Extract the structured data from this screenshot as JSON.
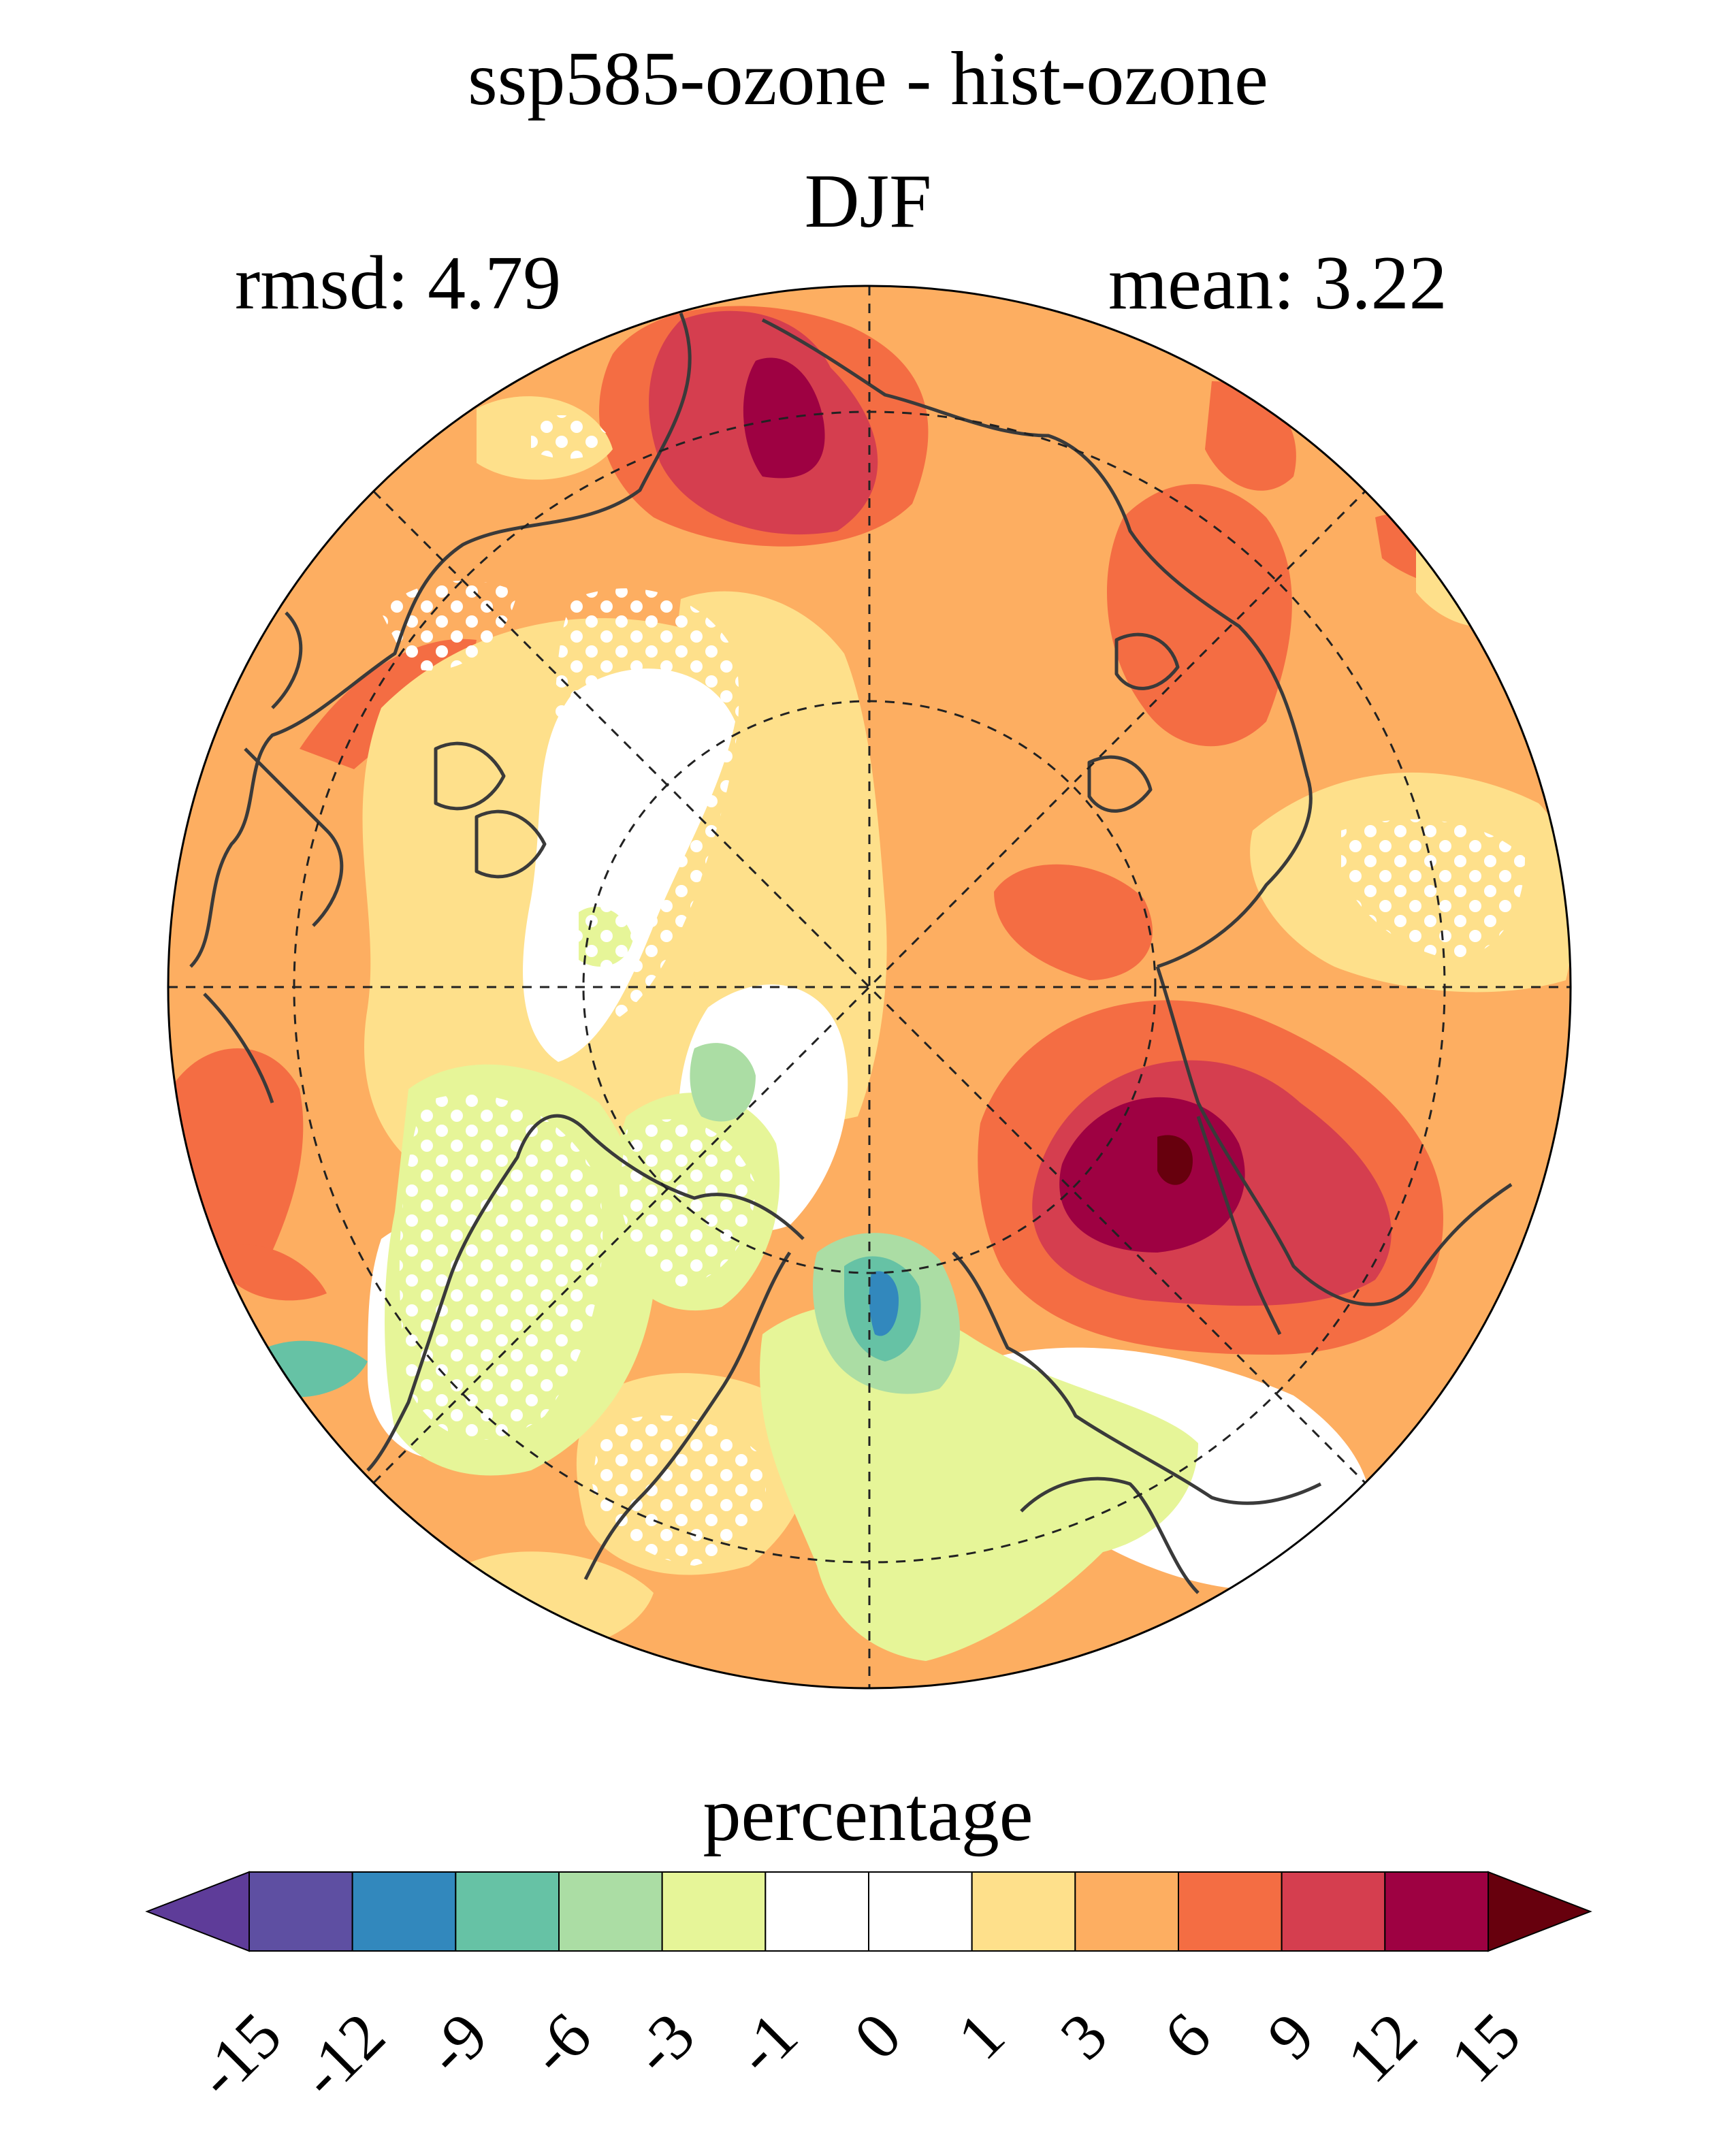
{
  "title": "ssp585-ozone - hist-ozone",
  "subtitle": "DJF",
  "stats": {
    "rmsd": "rmsd: 4.79",
    "mean": "mean: 3.22"
  },
  "colorbar": {
    "label": "percentage",
    "ticks": [
      "-15",
      "-12",
      "-9",
      "-6",
      "-3",
      "-1",
      "0",
      "1",
      "3",
      "6",
      "9",
      "12",
      "15"
    ],
    "colors": [
      "#5e4fa2",
      "#3288bd",
      "#66c2a5",
      "#abdda4",
      "#e6f598",
      "#ffffff",
      "#ffffff",
      "#fee08b",
      "#fdae61",
      "#f46d43",
      "#d53e4f",
      "#9e0142"
    ],
    "under_color": "#5e3c99",
    "over_color": "#67000d"
  },
  "map": {
    "projection": "north polar stereographic",
    "stippling": "white dots"
  }
}
